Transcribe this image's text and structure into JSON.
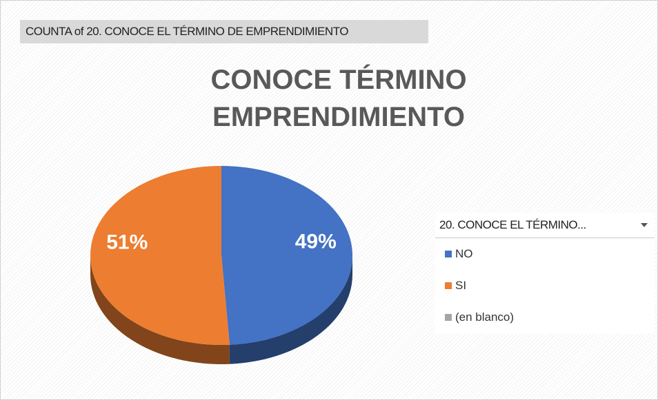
{
  "chart_data": {
    "type": "pie",
    "field_button": "COUNTA of 20. CONOCE EL TÉRMINO DE EMPRENDIMIENTO",
    "title": "CONOCE TÉRMINO EMPRENDIMIENTO",
    "legend_title": "20. CONOCE EL TÉRMINO...",
    "categories": [
      "NO",
      "SI",
      "(en blanco)"
    ],
    "values": [
      49,
      51,
      null
    ],
    "value_labels": [
      "49%",
      "51%",
      null
    ],
    "colors": [
      "#4472c4",
      "#ed7d31",
      "#a5a5a5"
    ],
    "legend_position": "right"
  }
}
